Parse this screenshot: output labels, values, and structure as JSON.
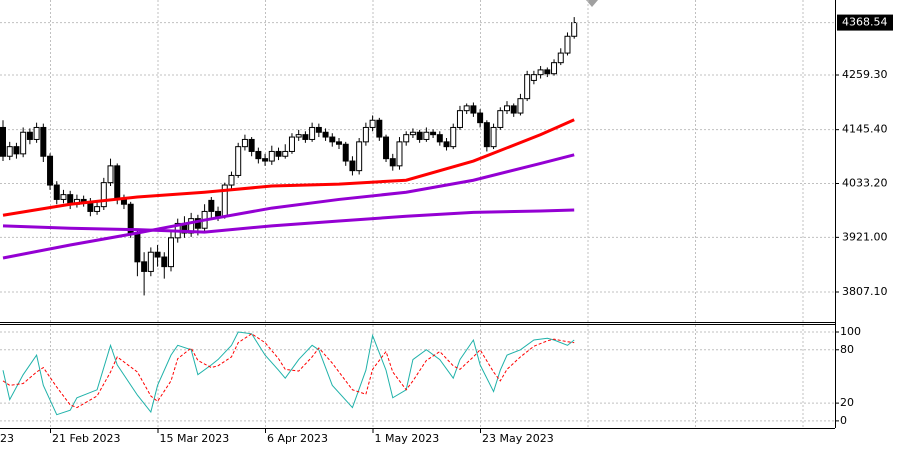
{
  "chart_data": [
    {
      "type": "candlestick",
      "open": [
        4150,
        4090,
        4110,
        4095,
        4140,
        4125,
        4150,
        4090,
        4030,
        4000,
        4010,
        3990,
        4000,
        3995,
        3975,
        3985,
        4035,
        4070,
        4000,
        3990,
        3930,
        3870,
        3850,
        3890,
        3880,
        3860,
        3920,
        3950,
        3930,
        3960,
        3940,
        3998,
        3975,
        3965,
        4030,
        4050,
        4110,
        4125,
        4100,
        4085,
        4080,
        4100,
        4090,
        4100,
        4130,
        4135,
        4125,
        4150,
        4140,
        4130,
        4120,
        4115,
        4080,
        4060,
        4120,
        4150,
        4165,
        4130,
        4085,
        4070,
        4120,
        4135,
        4140,
        4125,
        4140,
        4135,
        4120,
        4110,
        4150,
        4185,
        4195,
        4180,
        4160,
        4110,
        4150,
        4185,
        4195,
        4180,
        4210,
        4248,
        4260,
        4270,
        4262,
        4285,
        4305,
        4340
      ],
      "high": [
        4165,
        4120,
        4118,
        4150,
        4148,
        4160,
        4158,
        4096,
        4038,
        4020,
        4018,
        4010,
        4008,
        4003,
        3995,
        4045,
        4085,
        4075,
        4010,
        3995,
        3938,
        3890,
        3900,
        3905,
        3890,
        3935,
        3960,
        3965,
        3972,
        3968,
        3990,
        4005,
        3985,
        4035,
        4058,
        4118,
        4135,
        4130,
        4108,
        4095,
        4112,
        4108,
        4115,
        4138,
        4145,
        4142,
        4160,
        4158,
        4148,
        4138,
        4128,
        4120,
        4090,
        4128,
        4160,
        4175,
        4170,
        4135,
        4095,
        4130,
        4142,
        4148,
        4145,
        4150,
        4146,
        4142,
        4128,
        4158,
        4195,
        4200,
        4202,
        4188,
        4165,
        4158,
        4192,
        4205,
        4200,
        4220,
        4268,
        4268,
        4278,
        4275,
        4292,
        4315,
        4348,
        4380
      ],
      "low": [
        4080,
        4082,
        4085,
        4088,
        4115,
        4118,
        4078,
        4020,
        3990,
        3992,
        3980,
        3983,
        3985,
        3965,
        3968,
        3978,
        4028,
        3990,
        3980,
        3920,
        3840,
        3800,
        3840,
        3860,
        3835,
        3850,
        3910,
        3920,
        3922,
        3925,
        3932,
        3960,
        3955,
        3960,
        4022,
        4045,
        4102,
        4090,
        4075,
        4070,
        4072,
        4082,
        4085,
        4095,
        4122,
        4118,
        4120,
        4130,
        4122,
        4110,
        4105,
        4070,
        4050,
        4052,
        4112,
        4142,
        4122,
        4078,
        4060,
        4062,
        4112,
        4128,
        4118,
        4120,
        4128,
        4112,
        4102,
        4105,
        4145,
        4178,
        4172,
        4150,
        4100,
        4105,
        4145,
        4178,
        4172,
        4175,
        4205,
        4240,
        4252,
        4255,
        4258,
        4280,
        4300,
        4335
      ],
      "close": [
        4090,
        4110,
        4095,
        4140,
        4125,
        4150,
        4090,
        4030,
        4000,
        4010,
        3990,
        4000,
        3995,
        3975,
        3985,
        4035,
        4070,
        4000,
        3990,
        3930,
        3870,
        3850,
        3890,
        3880,
        3860,
        3920,
        3950,
        3930,
        3960,
        3940,
        3975,
        3975,
        3965,
        4030,
        4050,
        4110,
        4125,
        4100,
        4085,
        4080,
        4100,
        4090,
        4100,
        4130,
        4135,
        4125,
        4150,
        4140,
        4130,
        4120,
        4115,
        4080,
        4060,
        4120,
        4150,
        4165,
        4130,
        4085,
        4070,
        4120,
        4135,
        4140,
        4125,
        4140,
        4135,
        4120,
        4110,
        4150,
        4185,
        4195,
        4180,
        4160,
        4110,
        4150,
        4185,
        4195,
        4180,
        4210,
        4260,
        4260,
        4270,
        4262,
        4285,
        4305,
        4340,
        4368.54
      ],
      "lines": [
        {
          "color": "#ff0000",
          "x": [
            0,
            10,
            20,
            30,
            40,
            50,
            60,
            70,
            80,
            85
          ],
          "values": [
            3967,
            3990,
            4005,
            4015,
            4028,
            4032,
            4040,
            4080,
            4135,
            4166
          ]
        },
        {
          "color": "#9400d3",
          "x": [
            0,
            10,
            20,
            30,
            40,
            50,
            60,
            70,
            80,
            85
          ],
          "values": [
            3878,
            3905,
            3930,
            3957,
            3982,
            4000,
            4015,
            4040,
            4075,
            4093
          ]
        },
        {
          "color": "#9400d3",
          "x": [
            0,
            10,
            20,
            30,
            40,
            50,
            60,
            70,
            80,
            85
          ],
          "values": [
            3945,
            3940,
            3937,
            3932,
            3945,
            3955,
            3965,
            3973,
            3976,
            3978
          ]
        }
      ],
      "last_price": 4368.54,
      "ylim": [
        3744.6,
        4415.6
      ],
      "yticks": [
        {
          "value": 4259.3,
          "label": "4259.30"
        },
        {
          "value": 4145.4,
          "label": "4145.40"
        },
        {
          "value": 4033.2,
          "label": "4033.20"
        },
        {
          "value": 3921,
          "label": "3921.00"
        },
        {
          "value": 3807.1,
          "label": "3807.10"
        }
      ],
      "x_labels": [
        "23",
        "21 Feb 2023",
        "15 Mar 2023",
        "6 Apr 2023",
        "1 May 2023",
        "23 May 2023"
      ],
      "grid": true
    },
    {
      "type": "line",
      "series": [
        {
          "color": "#20b2aa",
          "style": "solid",
          "x": [
            0,
            1,
            3,
            5,
            6,
            8,
            10,
            11,
            14,
            16,
            17,
            20,
            22,
            23,
            25,
            26,
            28,
            29,
            31,
            32,
            34,
            35,
            37,
            39,
            41,
            42,
            44,
            46,
            47,
            49,
            52,
            54,
            55,
            57,
            58,
            60,
            61,
            63,
            65,
            67,
            68,
            70,
            71,
            73,
            74,
            75,
            77,
            79,
            81,
            82,
            84,
            85
          ],
          "values": [
            57,
            24,
            52,
            74,
            40,
            7,
            12,
            26,
            35,
            85,
            63,
            29,
            10,
            40,
            74,
            85,
            80,
            52,
            63,
            69,
            85,
            100,
            98,
            74,
            57,
            48,
            69,
            85,
            80,
            40,
            15,
            57,
            96,
            57,
            26,
            35,
            69,
            80,
            69,
            48,
            69,
            91,
            63,
            33,
            57,
            74,
            80,
            91,
            93,
            91,
            85,
            91
          ]
        },
        {
          "color": "#ff0000",
          "style": "dashed",
          "x": [
            0,
            1,
            3,
            5,
            6,
            8,
            10,
            11,
            14,
            16,
            17,
            20,
            22,
            23,
            25,
            26,
            28,
            29,
            31,
            32,
            34,
            35,
            37,
            39,
            41,
            42,
            44,
            46,
            47,
            49,
            52,
            54,
            55,
            57,
            58,
            60,
            61,
            63,
            65,
            67,
            68,
            70,
            71,
            73,
            74,
            75,
            77,
            79,
            81,
            82,
            84,
            85
          ],
          "values": [
            45,
            40,
            42,
            55,
            60,
            38,
            18,
            15,
            28,
            55,
            72,
            55,
            28,
            22,
            45,
            70,
            82,
            68,
            60,
            62,
            72,
            88,
            98,
            88,
            70,
            58,
            56,
            72,
            82,
            65,
            35,
            30,
            58,
            78,
            55,
            35,
            45,
            68,
            78,
            62,
            58,
            72,
            80,
            55,
            45,
            58,
            72,
            84,
            90,
            92,
            89,
            88
          ]
        }
      ],
      "ylim": [
        -8,
        109
      ],
      "yticks": [
        100,
        80,
        20,
        0
      ],
      "grid": true
    }
  ]
}
